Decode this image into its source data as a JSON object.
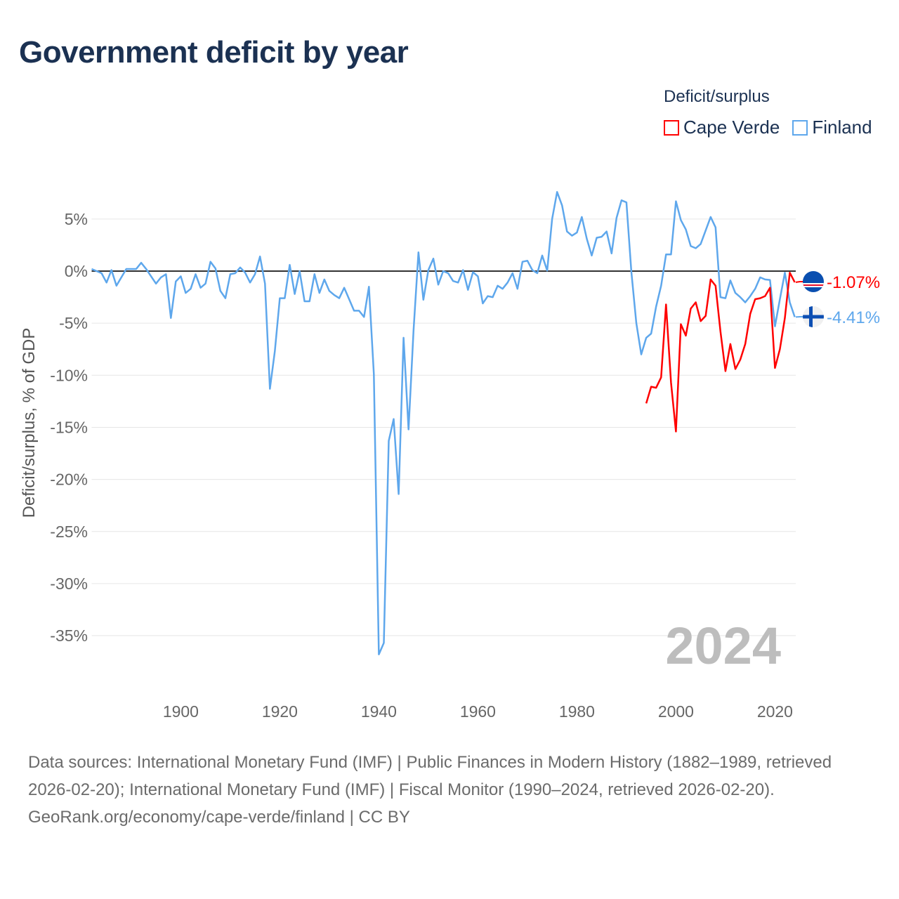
{
  "title": "Government deficit by year",
  "legend": {
    "title": "Deficit/surplus",
    "items": [
      {
        "label": "Cape Verde",
        "color": "#ff0000"
      },
      {
        "label": "Finland",
        "color": "#5ea7ec"
      }
    ]
  },
  "watermark_year": "2024",
  "footer": {
    "sources": "Data sources: International Monetary Fund (IMF) | Public Finances in Modern History (1882–1989, retrieved 2026-02-20); International Monetary Fund (IMF) | Fiscal Monitor (1990–2024, retrieved 2026-02-20).",
    "credit": "GeoRank.org/economy/cape-verde/finland | CC BY"
  },
  "chart_data": {
    "type": "line",
    "title": "Government deficit by year",
    "xlabel": "",
    "ylabel": "Deficit/surplus, % of GDP",
    "xlim": [
      1882,
      2024
    ],
    "ylim": [
      -38,
      9
    ],
    "x_ticks": [
      1900,
      1920,
      1940,
      1960,
      1980,
      2000,
      2020
    ],
    "x_tick_labels": [
      "1900",
      "1920",
      "1940",
      "1960",
      "1980",
      "2000",
      "2020"
    ],
    "y_ticks": [
      5,
      0,
      -5,
      -10,
      -15,
      -20,
      -25,
      -30,
      -35
    ],
    "y_tick_labels": [
      "5%",
      "0%",
      "-5%",
      "-10%",
      "-15%",
      "-20%",
      "-25%",
      "-30%",
      "-35%"
    ],
    "grid": true,
    "legend_position": "top-right",
    "series": [
      {
        "name": "Finland",
        "color": "#5ea7ec",
        "end_label": "-4.41%",
        "start_year": 1882,
        "values": [
          0.2,
          0,
          -0.2,
          -1.1,
          0.1,
          -1.4,
          -0.6,
          0.2,
          0.2,
          0.2,
          0.8,
          0.2,
          -0.5,
          -1.2,
          -0.6,
          -0.3,
          -4.5,
          -1.0,
          -0.5,
          -2.1,
          -1.7,
          -0.3,
          -1.6,
          -1.2,
          0.9,
          0.25,
          -1.9,
          -2.6,
          -0.3,
          -0.2,
          0.35,
          -0.15,
          -1.1,
          -0.3,
          1.4,
          -1.2,
          -11.3,
          -7.7,
          -2.6,
          -2.6,
          0.6,
          -2.2,
          0,
          -2.9,
          -2.9,
          -0.3,
          -2.1,
          -0.8,
          -1.9,
          -2.3,
          -2.6,
          -1.6,
          -2.7,
          -3.8,
          -3.8,
          -4.4,
          -1.5,
          -9.9,
          -36.8,
          -35.7,
          -16.3,
          -14.2,
          -21.4,
          -6.4,
          -15.2,
          -5.7,
          1.8,
          -2.75,
          0.1,
          1.2,
          -1.3,
          0,
          -0.2,
          -0.95,
          -1.1,
          0.1,
          -1.8,
          -0.1,
          -0.5,
          -3.1,
          -2.4,
          -2.5,
          -1.4,
          -1.7,
          -1.1,
          -0.2,
          -1.7,
          0.9,
          1.0,
          0.1,
          -0.2,
          1.5,
          0.05,
          5.0,
          7.6,
          6.3,
          3.8,
          3.4,
          3.7,
          5.2,
          3.1,
          1.5,
          3.2,
          3.3,
          3.8,
          1.7,
          5.1,
          6.8,
          6.6,
          -0.05,
          -5.0,
          -8.0,
          -6.4,
          -6.0,
          -3.4,
          -1.4,
          1.6,
          1.6,
          6.7,
          4.9,
          4.0,
          2.4,
          2.2,
          2.6,
          3.9,
          5.2,
          4.2,
          -2.5,
          -2.6,
          -0.9,
          -2.1,
          -2.5,
          -3.0,
          -2.4,
          -1.7,
          -0.6,
          -0.8,
          -0.85,
          -5.3,
          -2.7,
          -0.15,
          -3.0,
          -4.41
        ]
      },
      {
        "name": "Cape Verde",
        "color": "#ff0000",
        "end_label": "-1.07%",
        "start_year": 1994,
        "values": [
          -12.7,
          -11.1,
          -11.2,
          -10.2,
          -3.2,
          -10.7,
          -15.4,
          -5.1,
          -6.2,
          -3.6,
          -3.0,
          -4.8,
          -4.3,
          -0.8,
          -1.4,
          -5.8,
          -9.6,
          -7.0,
          -9.4,
          -8.5,
          -7.0,
          -4.1,
          -2.7,
          -2.6,
          -2.4,
          -1.6,
          -9.3,
          -7.5,
          -4.5,
          -0.15,
          -1.07
        ]
      }
    ]
  }
}
